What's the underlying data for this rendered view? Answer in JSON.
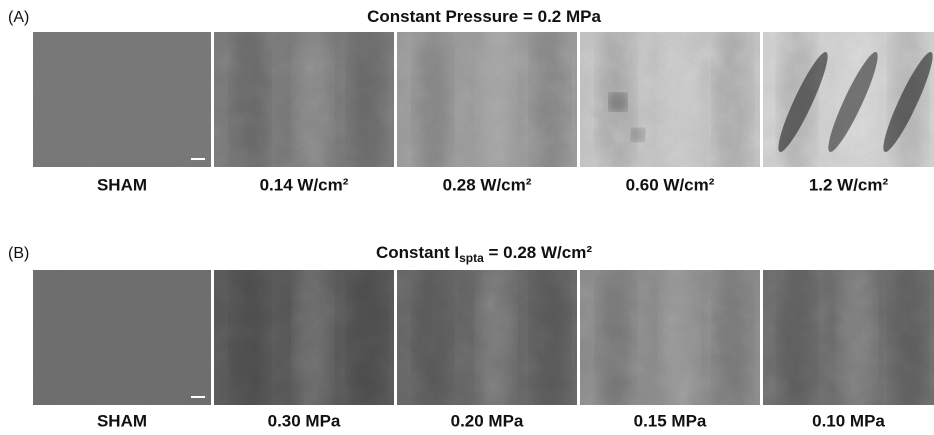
{
  "panels": [
    {
      "label": "(A)",
      "title": {
        "text": "Constant Pressure = 0.2 MPa"
      },
      "images": [
        "SHAM",
        "0.14 W/cm²",
        "0.28 W/cm²",
        "0.60 W/cm²",
        "1.2 W/cm²"
      ]
    },
    {
      "label": "(B)",
      "title": {
        "before": "Constant I",
        "sub": "spta",
        "after": " = 0.28 W/cm²"
      },
      "images": [
        "SHAM",
        "0.30 MPa",
        "0.20 MPa",
        "0.15 MPa",
        "0.10 MPa"
      ]
    }
  ]
}
